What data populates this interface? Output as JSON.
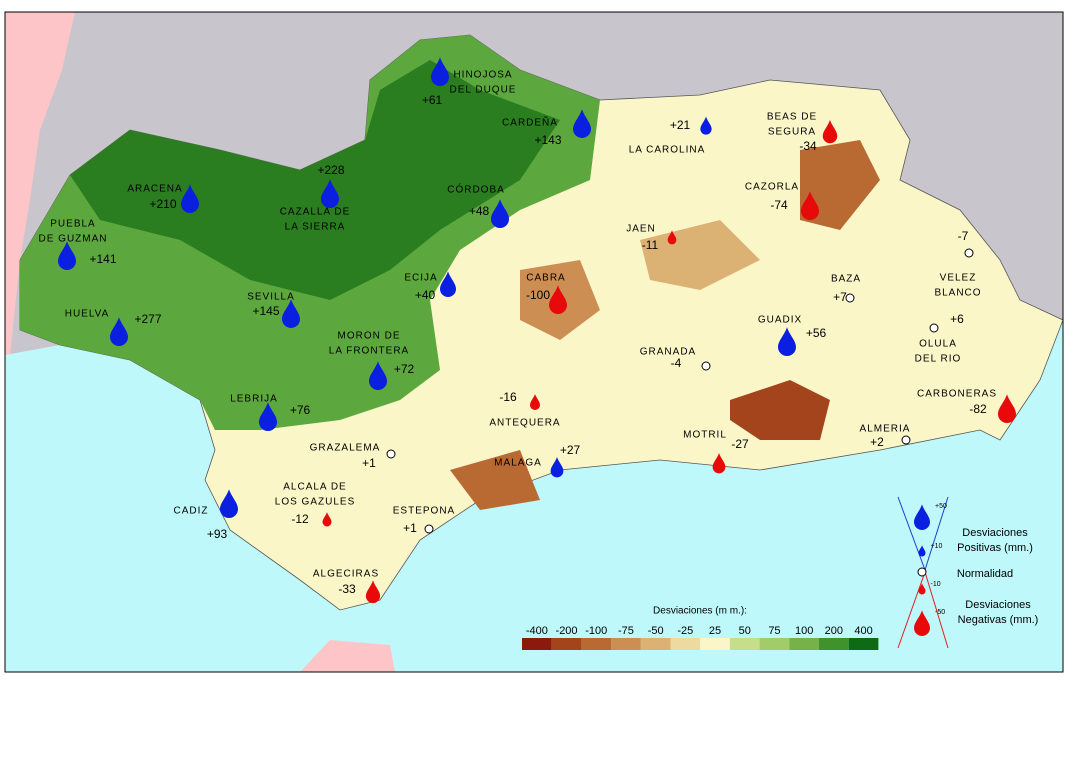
{
  "map": {
    "stations": [
      {
        "name": [
          "HINOJOSA",
          "DEL DUQUE"
        ],
        "value": 61,
        "value_label": "+61"
      },
      {
        "name": [
          "CARDEÑA"
        ],
        "value": 143,
        "value_label": "+143"
      },
      {
        "name": [
          "LA CAROLINA"
        ],
        "value": 21,
        "value_label": "+21"
      },
      {
        "name": [
          "BEAS DE",
          "SEGURA"
        ],
        "value": -34,
        "value_label": "-34"
      },
      {
        "name": [
          "CAZORLA"
        ],
        "value": -74,
        "value_label": "-74"
      },
      {
        "name": [
          "ARACENA"
        ],
        "value": 210,
        "value_label": "+210"
      },
      {
        "name": [
          "CAZALLA DE",
          "LA SIERRA"
        ],
        "value": 228,
        "value_label": "+228"
      },
      {
        "name": [
          "CÓRDOBA"
        ],
        "value": 48,
        "value_label": "+48"
      },
      {
        "name": [
          "PUEBLA",
          "DE GUZMAN"
        ],
        "value": 141,
        "value_label": "+141"
      },
      {
        "name": [
          "JAEN"
        ],
        "value": -11,
        "value_label": "-11"
      },
      {
        "name": [
          "VELEZ",
          "BLANCO"
        ],
        "value": -7,
        "value_label": "-7"
      },
      {
        "name": [
          "ECIJA"
        ],
        "value": 40,
        "value_label": "+40"
      },
      {
        "name": [
          "CABRA"
        ],
        "value": -100,
        "value_label": "-100"
      },
      {
        "name": [
          "BAZA"
        ],
        "value": 7,
        "value_label": "+7"
      },
      {
        "name": [
          "SEVILLA"
        ],
        "value": 145,
        "value_label": "+145"
      },
      {
        "name": [
          "HUELVA"
        ],
        "value": 277,
        "value_label": "+277"
      },
      {
        "name": [
          "OLULA",
          "DEL RIO"
        ],
        "value": 6,
        "value_label": "+6"
      },
      {
        "name": [
          "GUADIX"
        ],
        "value": 56,
        "value_label": "+56"
      },
      {
        "name": [
          "GRANADA"
        ],
        "value": -4,
        "value_label": "-4"
      },
      {
        "name": [
          "MORON DE",
          "LA FRONTERA"
        ],
        "value": 72,
        "value_label": "+72"
      },
      {
        "name": [
          "LEBRIJA"
        ],
        "value": 76,
        "value_label": "+76"
      },
      {
        "name": [
          "ANTEQUERA"
        ],
        "value": -16,
        "value_label": "-16"
      },
      {
        "name": [
          "CARBONERAS"
        ],
        "value": -82,
        "value_label": "-82"
      },
      {
        "name": [
          "MOTRIL"
        ],
        "value": -27,
        "value_label": "-27"
      },
      {
        "name": [
          "ALMERIA"
        ],
        "value": 2,
        "value_label": "+2"
      },
      {
        "name": [
          "GRAZALEMA"
        ],
        "value": 1,
        "value_label": "+1"
      },
      {
        "name": [
          "MALAGA"
        ],
        "value": 27,
        "value_label": "+27"
      },
      {
        "name": [
          "ALCALA DE",
          "LOS GAZULES"
        ],
        "value": -12,
        "value_label": "-12"
      },
      {
        "name": [
          "CADIZ"
        ],
        "value": 93,
        "value_label": "+93"
      },
      {
        "name": [
          "ESTEPONA"
        ],
        "value": 1,
        "value_label": "+1"
      },
      {
        "name": [
          "ALGECIRAS"
        ],
        "value": -33,
        "value_label": "-33"
      }
    ],
    "scale": {
      "title": "Desviaciones (m m.):",
      "labels": [
        "-400",
        "-200",
        "-100",
        "-75",
        "-50",
        "-25",
        "25",
        "50",
        "75",
        "100",
        "200",
        "400"
      ],
      "colors": [
        "#8b1a0c",
        "#a3441d",
        "#b96a32",
        "#cc8e52",
        "#dcb274",
        "#eed9a0",
        "#fbf6c8",
        "#c6dd8c",
        "#a2cb69",
        "#76b249",
        "#3f922c",
        "#0f6a16"
      ]
    },
    "symbol_legend": {
      "symbols": [
        {
          "value": 50,
          "label": "+50"
        },
        {
          "value": 10,
          "label": "+10"
        },
        {
          "value": 0,
          "label": ""
        },
        {
          "value": -10,
          "label": "-10"
        },
        {
          "value": -50,
          "label": "-50"
        }
      ],
      "positive": [
        "Desviaciones",
        "Positivas (mm.)"
      ],
      "normal": "Normalidad",
      "negative": [
        "Desviaciones",
        "Negativas (mm.)"
      ]
    }
  }
}
